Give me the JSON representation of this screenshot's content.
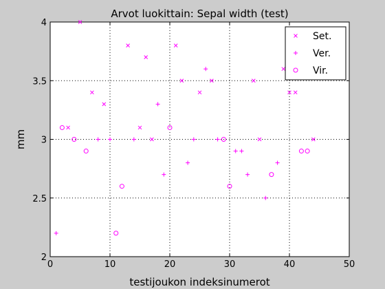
{
  "chart_data": {
    "type": "scatter",
    "title": "Arvot luokittain: Sepal width (test)",
    "xlabel": "testijoukon indeksinumerot",
    "ylabel": "mm",
    "xlim": [
      0,
      50
    ],
    "ylim": [
      2,
      4
    ],
    "xticks": [
      0,
      10,
      20,
      30,
      40,
      50
    ],
    "yticks": [
      2,
      2.5,
      3,
      3.5,
      4
    ],
    "xtick_labels": [
      "0",
      "10",
      "20",
      "30",
      "40",
      "50"
    ],
    "ytick_labels": [
      "2",
      "2.5",
      "3",
      "3.5",
      "4"
    ],
    "grid": true,
    "legend_position": "top-right",
    "marker_color": "#ff00ff",
    "series": [
      {
        "name": "Set.",
        "marker": "x",
        "points": [
          [
            3,
            3.1
          ],
          [
            5,
            4.0
          ],
          [
            7,
            3.4
          ],
          [
            9,
            3.3
          ],
          [
            13,
            3.8
          ],
          [
            15,
            3.1
          ],
          [
            16,
            3.7
          ],
          [
            17,
            3.0
          ],
          [
            21,
            3.8
          ],
          [
            22,
            3.5
          ],
          [
            25,
            3.4
          ],
          [
            27,
            3.5
          ],
          [
            34,
            3.5
          ],
          [
            35,
            3.0
          ],
          [
            39,
            3.6
          ],
          [
            40,
            3.4
          ],
          [
            41,
            3.4
          ],
          [
            44,
            3.0
          ]
        ]
      },
      {
        "name": "Ver.",
        "marker": "+",
        "points": [
          [
            1,
            2.2
          ],
          [
            8,
            3.0
          ],
          [
            10,
            3.0
          ],
          [
            14,
            3.0
          ],
          [
            18,
            3.3
          ],
          [
            19,
            2.7
          ],
          [
            23,
            2.8
          ],
          [
            24,
            3.0
          ],
          [
            26,
            3.6
          ],
          [
            28,
            3.0
          ],
          [
            31,
            2.9
          ],
          [
            32,
            2.9
          ],
          [
            33,
            2.7
          ],
          [
            36,
            2.5
          ],
          [
            38,
            2.8
          ]
        ]
      },
      {
        "name": "Vir.",
        "marker": "o",
        "points": [
          [
            2,
            3.1
          ],
          [
            4,
            3.0
          ],
          [
            6,
            2.9
          ],
          [
            11,
            2.2
          ],
          [
            12,
            2.6
          ],
          [
            20,
            3.1
          ],
          [
            29,
            3.0
          ],
          [
            30,
            2.6
          ],
          [
            37,
            2.7
          ],
          [
            42,
            2.9
          ],
          [
            43,
            2.9
          ]
        ]
      }
    ]
  }
}
